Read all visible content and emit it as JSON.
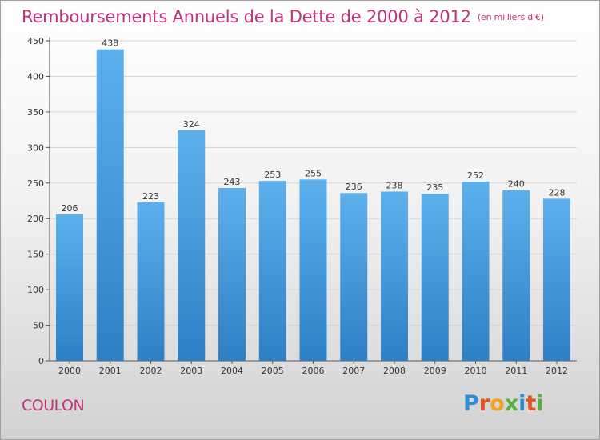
{
  "chart_data": {
    "type": "bar",
    "title": "Remboursements Annuels de la Dette de 2000 à 2012",
    "unit": "(en milliers d'€)",
    "categories": [
      "2000",
      "2001",
      "2002",
      "2003",
      "2004",
      "2005",
      "2006",
      "2007",
      "2008",
      "2009",
      "2010",
      "2011",
      "2012"
    ],
    "values": [
      206,
      438,
      223,
      324,
      243,
      253,
      255,
      236,
      238,
      235,
      252,
      240,
      228
    ],
    "ylim": [
      0,
      450
    ],
    "yticks": [
      0,
      50,
      100,
      150,
      200,
      250,
      300,
      350,
      400,
      450
    ],
    "grid": true,
    "colors": {
      "bar_top": "#5db0ec",
      "bar_bottom": "#2f7fc5",
      "title": "#c0317a"
    }
  },
  "footer": {
    "commune": "COULON",
    "logo": "Proxiti"
  }
}
